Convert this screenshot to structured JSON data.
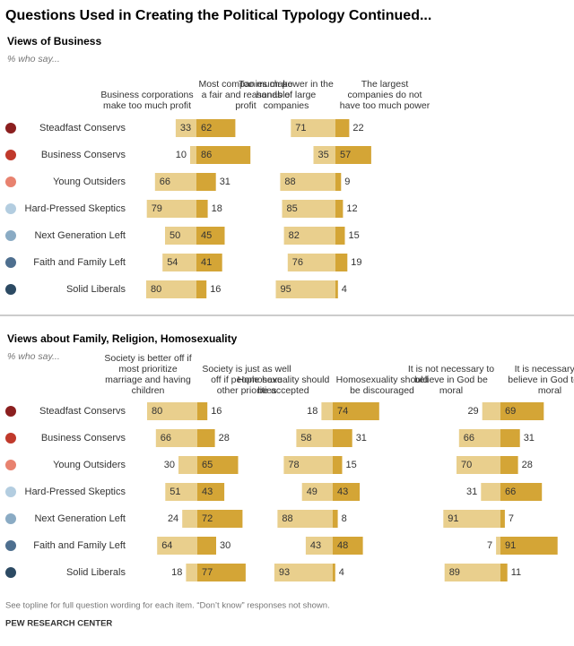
{
  "title": "Questions Used in Creating the Political Typology Continued...",
  "footnote": "See topline for full question wording for each item. “Don’t know” responses not shown.",
  "source": "PEW RESEARCH CENTER",
  "chart_data": [
    {
      "type": "diverging-bar",
      "title": "Views of Business",
      "subtitle": "% who say...",
      "categories": [
        "Steadfast Conservs",
        "Business Conservs",
        "Young Outsiders",
        "Hard-Pressed Skeptics",
        "Next Generation Left",
        "Faith and Family Left",
        "Solid Liberals"
      ],
      "category_colors": [
        "#8b1f1f",
        "#c0392b",
        "#e8826f",
        "#b3cde0",
        "#8aabc4",
        "#4e6f8f",
        "#2c4a63"
      ],
      "groups": [
        {
          "series": [
            {
              "name": "Business corporations make too much profit",
              "color": "#e9cf8d",
              "values": [
                33,
                10,
                66,
                79,
                50,
                54,
                80
              ]
            },
            {
              "name": "Most companies make a fair and reasonable profit",
              "color": "#d4a536",
              "values": [
                62,
                86,
                31,
                18,
                45,
                41,
                16
              ]
            }
          ]
        },
        {
          "series": [
            {
              "name": "Too much power in the hands of large companies",
              "color": "#e9cf8d",
              "values": [
                71,
                35,
                88,
                85,
                82,
                76,
                95
              ]
            },
            {
              "name": "The largest companies do not have too much power",
              "color": "#d4a536",
              "values": [
                22,
                57,
                9,
                12,
                15,
                19,
                4
              ]
            }
          ]
        }
      ]
    },
    {
      "type": "diverging-bar",
      "title": "Views about Family, Religion, Homosexuality",
      "subtitle": "% who say...",
      "categories": [
        "Steadfast Conservs",
        "Business Conservs",
        "Young Outsiders",
        "Hard-Pressed Skeptics",
        "Next Generation Left",
        "Faith and Family Left",
        "Solid Liberals"
      ],
      "category_colors": [
        "#8b1f1f",
        "#c0392b",
        "#e8826f",
        "#b3cde0",
        "#8aabc4",
        "#4e6f8f",
        "#2c4a63"
      ],
      "groups": [
        {
          "series": [
            {
              "name": "Society is better off if most prioritize marriage and having children",
              "color": "#e9cf8d",
              "values": [
                80,
                66,
                30,
                51,
                24,
                64,
                18
              ]
            },
            {
              "name": "Society is just as well off if people have other priorities",
              "color": "#d4a536",
              "values": [
                16,
                28,
                65,
                43,
                72,
                30,
                77
              ]
            }
          ]
        },
        {
          "series": [
            {
              "name": "Homosexuality should be accepted",
              "color": "#e9cf8d",
              "values": [
                18,
                58,
                78,
                49,
                88,
                43,
                93
              ]
            },
            {
              "name": "Homosexuality should be discouraged",
              "color": "#d4a536",
              "values": [
                74,
                31,
                15,
                43,
                8,
                48,
                4
              ]
            }
          ]
        },
        {
          "series": [
            {
              "name": "It is not necessary to believe in God be moral",
              "color": "#e9cf8d",
              "values": [
                29,
                66,
                70,
                31,
                91,
                7,
                89
              ]
            },
            {
              "name": "It is necessary to believe in God to be moral",
              "color": "#d4a536",
              "values": [
                69,
                31,
                28,
                66,
                7,
                91,
                11
              ]
            }
          ]
        }
      ]
    }
  ]
}
